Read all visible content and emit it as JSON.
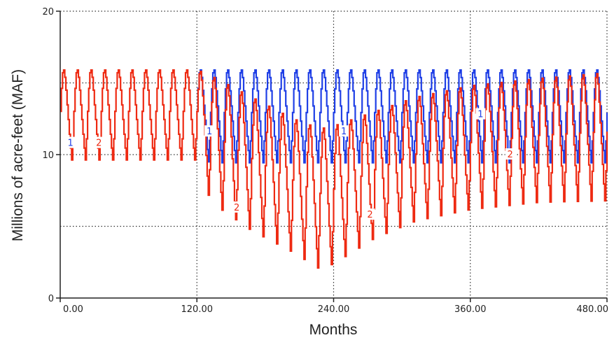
{
  "chart_data": {
    "type": "line",
    "title": "",
    "xlabel": "Months",
    "ylabel": "Millions of acre-feet (MAF)",
    "xlim": [
      0,
      480
    ],
    "ylim": [
      0,
      20
    ],
    "x_ticks": [
      0,
      120,
      240,
      360,
      480
    ],
    "x_tick_labels": [
      "0.00",
      "120.00",
      "240.00",
      "360.00",
      "480.00"
    ],
    "y_ticks": [
      0,
      10,
      20
    ],
    "y_tick_labels": [
      "0",
      "10",
      "20"
    ],
    "gridlines": {
      "horizontal": [
        5,
        10,
        15,
        20
      ],
      "vertical": [
        120,
        240,
        360,
        480
      ]
    },
    "colors": {
      "series_1": "#1f3fe6",
      "series_2": "#ee2a12"
    },
    "series": [
      {
        "marker": "1",
        "cycle_months": 12,
        "description_points": [
          {
            "month": 0,
            "min": 9.5,
            "max": 15.9
          },
          {
            "month": 120,
            "min": 9.5,
            "max": 15.9
          },
          {
            "month": 135,
            "min": 9.3,
            "max": 15.9
          },
          {
            "month": 480,
            "min": 9.3,
            "max": 15.9
          }
        ],
        "markers": [
          {
            "x": 9,
            "y": 10.8
          },
          {
            "x": 131,
            "y": 11.6
          },
          {
            "x": 249,
            "y": 11.6
          },
          {
            "x": 369,
            "y": 12.8
          }
        ]
      },
      {
        "marker": "2",
        "cycle_months": 12,
        "envelope": [
          {
            "month": 0,
            "min": 9.5,
            "max": 15.9
          },
          {
            "month": 120,
            "min": 9.5,
            "max": 15.9
          },
          {
            "month": 132,
            "min": 6.5,
            "max": 15.5
          },
          {
            "month": 168,
            "min": 4.5,
            "max": 14.0
          },
          {
            "month": 204,
            "min": 3.0,
            "max": 12.5
          },
          {
            "month": 228,
            "min": 1.8,
            "max": 11.8
          },
          {
            "month": 240,
            "min": 2.2,
            "max": 12.0
          },
          {
            "month": 276,
            "min": 4.0,
            "max": 13.0
          },
          {
            "month": 312,
            "min": 5.2,
            "max": 14.0
          },
          {
            "month": 360,
            "min": 6.0,
            "max": 14.8
          },
          {
            "month": 420,
            "min": 6.5,
            "max": 15.3
          },
          {
            "month": 480,
            "min": 6.6,
            "max": 15.7
          }
        ],
        "markers": [
          {
            "x": 34,
            "y": 10.8
          },
          {
            "x": 155,
            "y": 6.3
          },
          {
            "x": 272,
            "y": 5.8
          },
          {
            "x": 395,
            "y": 10.0
          }
        ]
      }
    ]
  }
}
